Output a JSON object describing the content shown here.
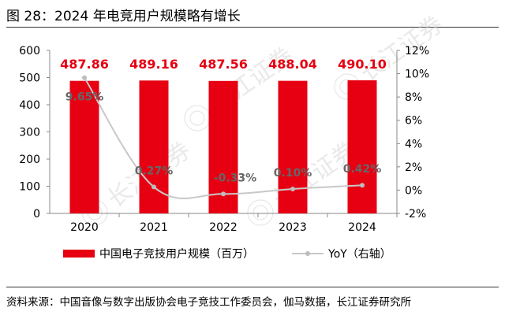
{
  "figure_title": "图 28：2024 年电竞用户规模略有增长",
  "source_note": "资料来源：中国音像与数字出版协会电子竞技工作委员会，伽马数据，长江证券研究所",
  "watermark_text": "长江证券",
  "chart_data": {
    "type": "bar",
    "categories": [
      "2020",
      "2021",
      "2022",
      "2023",
      "2024"
    ],
    "series": [
      {
        "name": "中国电子竞技用户规模（百万）",
        "kind": "bar",
        "axis": "left",
        "color": "#e60012",
        "values": [
          487.86,
          489.16,
          487.56,
          488.04,
          490.1
        ],
        "labels": [
          "487.86",
          "489.16",
          "487.56",
          "488.04",
          "490.10"
        ]
      },
      {
        "name": "YoY（右轴）",
        "kind": "line",
        "axis": "right",
        "color": "#c8c8c8",
        "values": [
          9.65,
          0.27,
          -0.33,
          0.1,
          0.42
        ],
        "labels": [
          "9.65%",
          "0.27%",
          "-0.33%",
          "0.10%",
          "0.42%"
        ]
      }
    ],
    "left_axis": {
      "min": 0,
      "max": 600,
      "ticks": [
        0,
        100,
        200,
        300,
        400,
        500,
        600
      ],
      "tick_labels": [
        "0",
        "100",
        "200",
        "300",
        "400",
        "500",
        "600"
      ]
    },
    "right_axis": {
      "min": -2,
      "max": 12,
      "ticks": [
        -2,
        0,
        2,
        4,
        6,
        8,
        10,
        12
      ],
      "tick_labels": [
        "-2%",
        "0%",
        "2%",
        "4%",
        "6%",
        "8%",
        "10%",
        "12%"
      ]
    },
    "legend_position": "bottom",
    "grid": false,
    "title": "",
    "xlabel": "",
    "ylabel": ""
  }
}
